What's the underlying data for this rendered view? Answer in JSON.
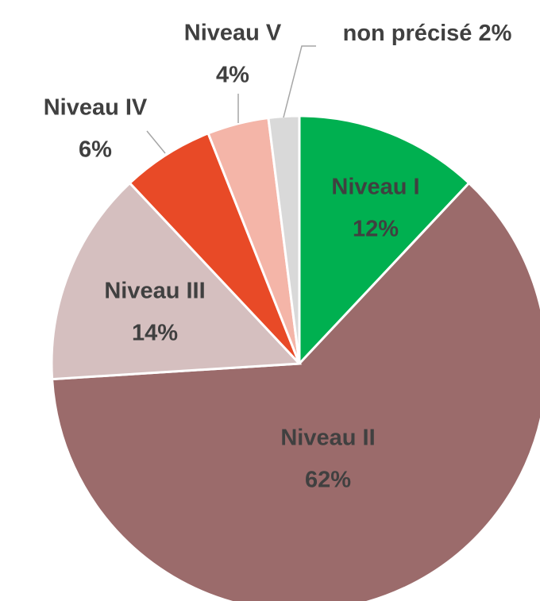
{
  "chart_data": {
    "type": "pie",
    "categories": [
      "Niveau I",
      "Niveau II",
      "Niveau III",
      "Niveau IV",
      "Niveau V",
      "non précisé"
    ],
    "values": [
      12,
      62,
      14,
      6,
      4,
      2
    ],
    "value_labels": [
      "12%",
      "62%",
      "14%",
      "6%",
      "4%",
      "2%"
    ],
    "colors": [
      "#00b050",
      "#9b6b6b",
      "#d5bfbf",
      "#e84a27",
      "#f4b5a8",
      "#d9d9d9"
    ]
  }
}
